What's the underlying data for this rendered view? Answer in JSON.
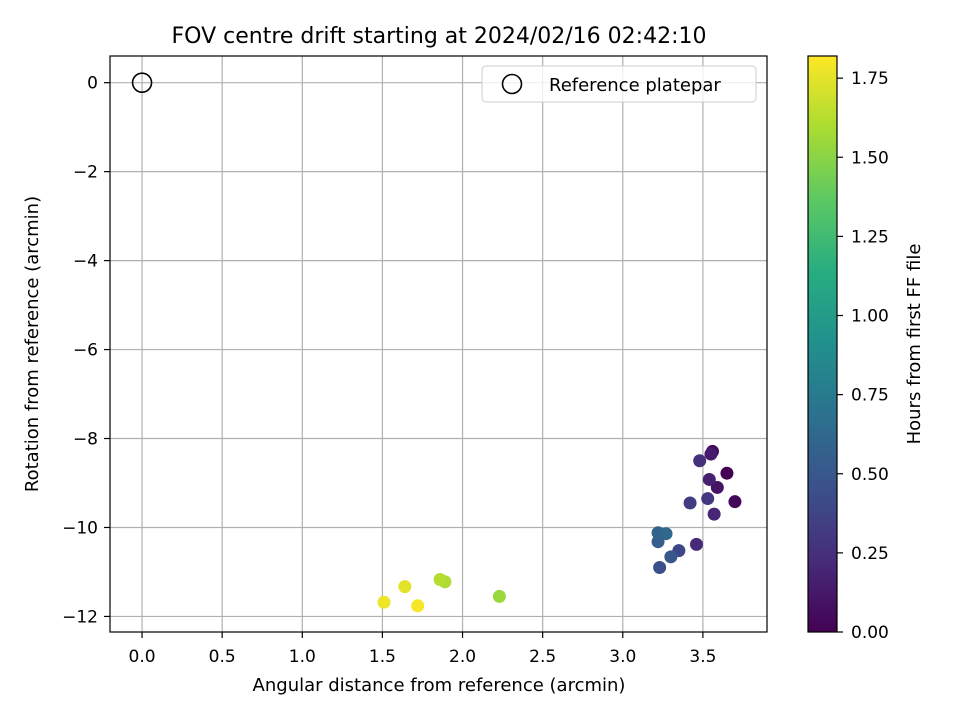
{
  "chart_data": {
    "type": "scatter",
    "title": "FOV centre drift starting at 2024/02/16 02:42:10",
    "xlabel": "Angular distance from reference (arcmin)",
    "ylabel": "Rotation from reference (arcmin)",
    "xlim": [
      -0.2,
      3.9
    ],
    "ylim": [
      -12.35,
      0.6
    ],
    "xticks": [
      0.0,
      0.5,
      1.0,
      1.5,
      2.0,
      2.5,
      3.0,
      3.5
    ],
    "xtick_labels": [
      "0.0",
      "0.5",
      "1.0",
      "1.5",
      "2.0",
      "2.5",
      "3.0",
      "3.5"
    ],
    "yticks": [
      0,
      -2,
      -4,
      -6,
      -8,
      -10,
      -12
    ],
    "ytick_labels": [
      "0",
      "−2",
      "−4",
      "−6",
      "−8",
      "−10",
      "−12"
    ],
    "grid": true,
    "legend": {
      "position": "top-right",
      "entries": [
        {
          "label": "Reference platepar",
          "marker": "open-circle"
        }
      ]
    },
    "reference": {
      "x": 0.0,
      "y": 0.0
    },
    "colorbar": {
      "label": "Hours from first FF file",
      "range": [
        0.0,
        1.82
      ],
      "colormap": "viridis",
      "ticks": [
        0.0,
        0.25,
        0.5,
        0.75,
        1.0,
        1.25,
        1.5,
        1.75
      ],
      "tick_labels": [
        "0.00",
        "0.25",
        "0.50",
        "0.75",
        "1.00",
        "1.25",
        "1.50",
        "1.75"
      ]
    },
    "points": [
      {
        "x": 3.65,
        "y": -8.78,
        "c": 0.0
      },
      {
        "x": 3.7,
        "y": -9.42,
        "c": 0.03
      },
      {
        "x": 3.56,
        "y": -8.29,
        "c": 0.06
      },
      {
        "x": 3.59,
        "y": -9.1,
        "c": 0.1
      },
      {
        "x": 3.55,
        "y": -8.35,
        "c": 0.14
      },
      {
        "x": 3.54,
        "y": -8.92,
        "c": 0.17
      },
      {
        "x": 3.57,
        "y": -9.7,
        "c": 0.2
      },
      {
        "x": 3.46,
        "y": -10.38,
        "c": 0.22
      },
      {
        "x": 3.48,
        "y": -8.5,
        "c": 0.26
      },
      {
        "x": 3.53,
        "y": -9.35,
        "c": 0.29
      },
      {
        "x": 3.42,
        "y": -9.45,
        "c": 0.33
      },
      {
        "x": 3.35,
        "y": -10.52,
        "c": 0.39
      },
      {
        "x": 3.23,
        "y": -10.9,
        "c": 0.45
      },
      {
        "x": 3.3,
        "y": -10.66,
        "c": 0.5
      },
      {
        "x": 3.22,
        "y": -10.32,
        "c": 0.55
      },
      {
        "x": 3.22,
        "y": -10.12,
        "c": 0.58
      },
      {
        "x": 3.27,
        "y": -10.14,
        "c": 0.62
      },
      {
        "x": 2.23,
        "y": -11.55,
        "c": 1.55
      },
      {
        "x": 1.89,
        "y": -11.22,
        "c": 1.6
      },
      {
        "x": 1.86,
        "y": -11.17,
        "c": 1.62
      },
      {
        "x": 1.64,
        "y": -11.33,
        "c": 1.75
      },
      {
        "x": 1.51,
        "y": -11.68,
        "c": 1.78
      },
      {
        "x": 1.72,
        "y": -11.76,
        "c": 1.8
      }
    ]
  }
}
